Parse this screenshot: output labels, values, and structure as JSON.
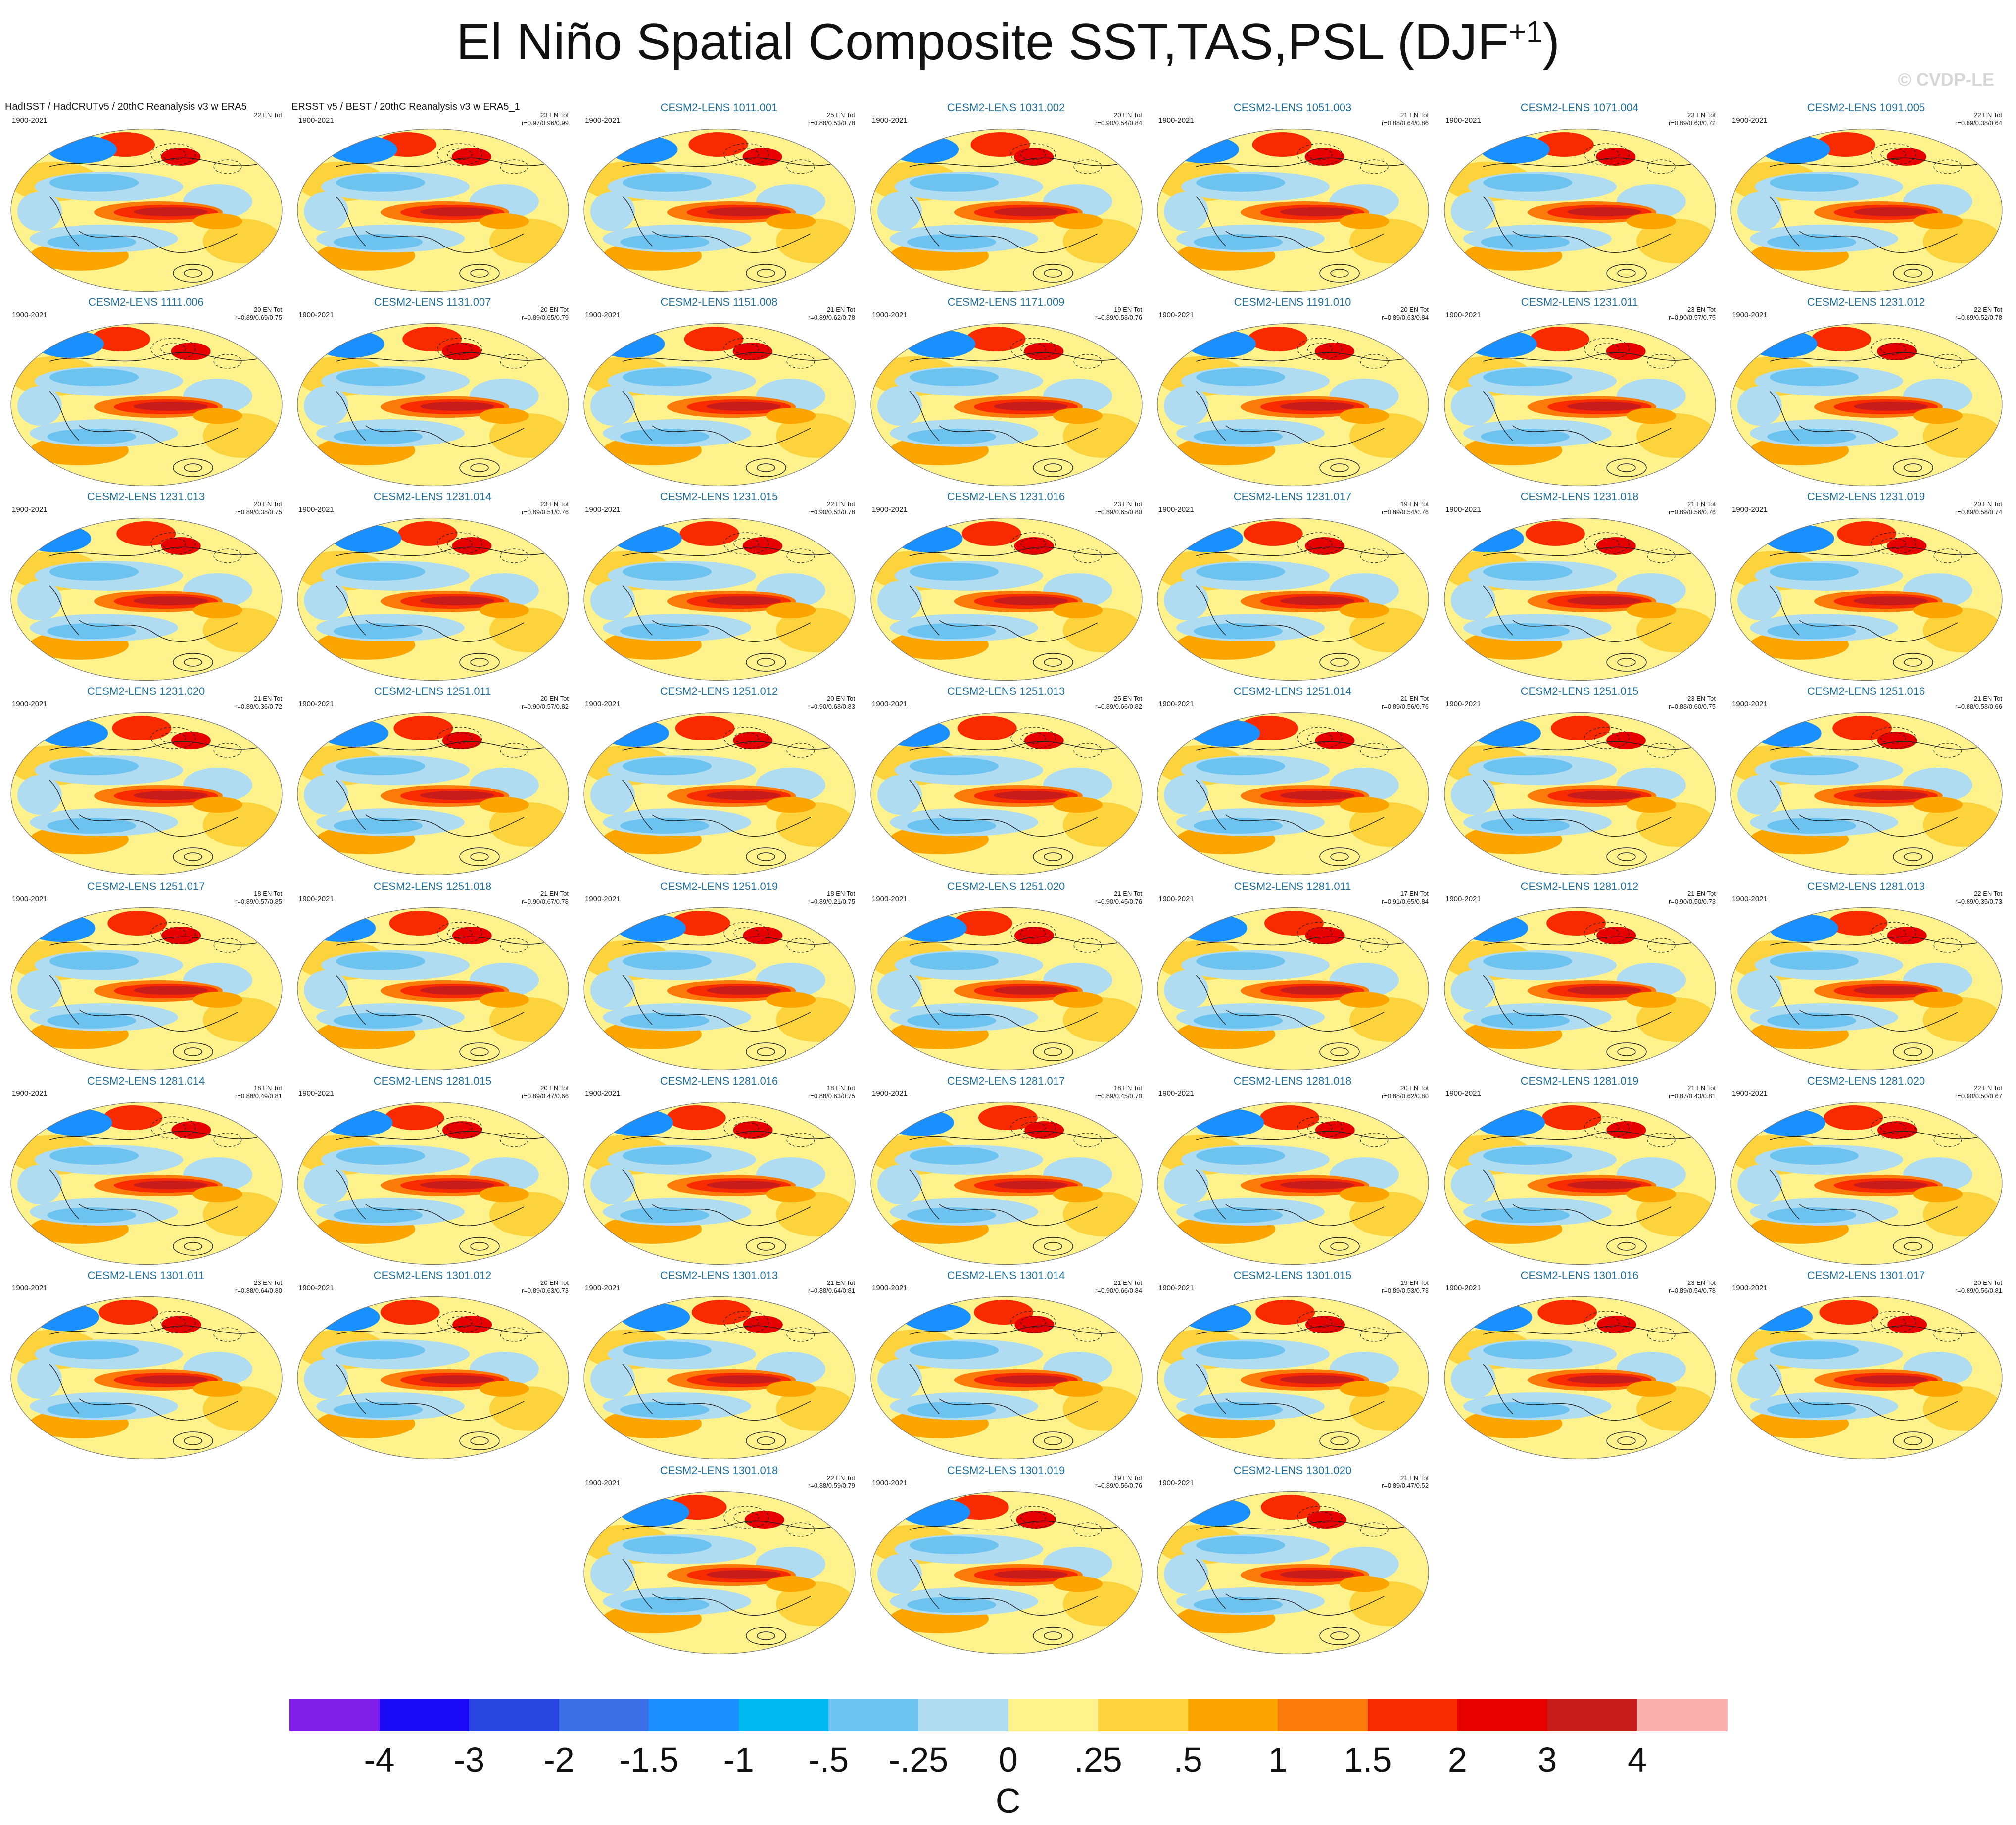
{
  "title": "El Niño Spatial Composite SST,TAS,PSL (DJF",
  "title_superscript": "+1",
  "title_close": ")",
  "watermark": "© CVDP-LE",
  "colors": {
    "member_title": "#1f6f9a",
    "contour": "#222222",
    "land_outline": "#666666"
  },
  "chart_data": {
    "type": "heatmap",
    "description_variables": [
      "SST",
      "TAS",
      "PSL"
    ],
    "season": "DJF+1",
    "units": "C",
    "colorbar": {
      "labels": [
        "-4",
        "-3",
        "-2",
        "-1.5",
        "-1",
        "-.5",
        "-.25",
        "0",
        ".25",
        ".5",
        "1",
        "1.5",
        "2",
        "3",
        "4"
      ],
      "colors": [
        "#7f1fe8",
        "#1a0af5",
        "#2947e0",
        "#3a6fe6",
        "#1a8fff",
        "#00b9f2",
        "#6dc3f0",
        "#b0dcf2",
        "#fdf28c",
        "#fcd23d",
        "#fca500",
        "#fb7b0a",
        "#f82a00",
        "#e60000",
        "#c81c1c",
        "#fbb0b0"
      ]
    },
    "panels": [
      {
        "title": "HadISST / HadCRUTv5 / 20thC Reanalysis v3 w ERA5",
        "years": "1900-2021",
        "events": "22 EN Tot",
        "stats": "",
        "obs": true
      },
      {
        "title": "ERSST v5 / BEST / 20thC Reanalysis v3 w ERA5_1",
        "years": "1900-2021",
        "events": "23 EN Tot",
        "stats": "r=0.97/0.96/0.99",
        "obs": true
      },
      {
        "title": "CESM2-LENS 1011.001",
        "years": "1900-2021",
        "events": "25 EN Tot",
        "stats": "r=0.88/0.53/0.78"
      },
      {
        "title": "CESM2-LENS 1031.002",
        "years": "1900-2021",
        "events": "20 EN Tot",
        "stats": "r=0.90/0.54/0.84"
      },
      {
        "title": "CESM2-LENS 1051.003",
        "years": "1900-2021",
        "events": "21 EN Tot",
        "stats": "r=0.88/0.64/0.86"
      },
      {
        "title": "CESM2-LENS 1071.004",
        "years": "1900-2021",
        "events": "23 EN Tot",
        "stats": "r=0.89/0.63/0.72"
      },
      {
        "title": "CESM2-LENS 1091.005",
        "years": "1900-2021",
        "events": "22 EN Tot",
        "stats": "r=0.89/0.38/0.64"
      },
      {
        "title": "CESM2-LENS 1111.006",
        "years": "1900-2021",
        "events": "20 EN Tot",
        "stats": "r=0.89/0.69/0.75"
      },
      {
        "title": "CESM2-LENS 1131.007",
        "years": "1900-2021",
        "events": "20 EN Tot",
        "stats": "r=0.89/0.65/0.79"
      },
      {
        "title": "CESM2-LENS 1151.008",
        "years": "1900-2021",
        "events": "21 EN Tot",
        "stats": "r=0.89/0.62/0.78"
      },
      {
        "title": "CESM2-LENS 1171.009",
        "years": "1900-2021",
        "events": "19 EN Tot",
        "stats": "r=0.89/0.58/0.76"
      },
      {
        "title": "CESM2-LENS 1191.010",
        "years": "1900-2021",
        "events": "20 EN Tot",
        "stats": "r=0.89/0.63/0.84"
      },
      {
        "title": "CESM2-LENS 1231.011",
        "years": "1900-2021",
        "events": "23 EN Tot",
        "stats": "r=0.90/0.57/0.75"
      },
      {
        "title": "CESM2-LENS 1231.012",
        "years": "1900-2021",
        "events": "22 EN Tot",
        "stats": "r=0.89/0.52/0.78"
      },
      {
        "title": "CESM2-LENS 1231.013",
        "years": "1900-2021",
        "events": "20 EN Tot",
        "stats": "r=0.89/0.38/0.75"
      },
      {
        "title": "CESM2-LENS 1231.014",
        "years": "1900-2021",
        "events": "23 EN Tot",
        "stats": "r=0.89/0.51/0.76"
      },
      {
        "title": "CESM2-LENS 1231.015",
        "years": "1900-2021",
        "events": "22 EN Tot",
        "stats": "r=0.90/0.53/0.78"
      },
      {
        "title": "CESM2-LENS 1231.016",
        "years": "1900-2021",
        "events": "23 EN Tot",
        "stats": "r=0.89/0.65/0.80"
      },
      {
        "title": "CESM2-LENS 1231.017",
        "years": "1900-2021",
        "events": "19 EN Tot",
        "stats": "r=0.89/0.54/0.76"
      },
      {
        "title": "CESM2-LENS 1231.018",
        "years": "1900-2021",
        "events": "21 EN Tot",
        "stats": "r=0.89/0.56/0.76"
      },
      {
        "title": "CESM2-LENS 1231.019",
        "years": "1900-2021",
        "events": "20 EN Tot",
        "stats": "r=0.89/0.58/0.74"
      },
      {
        "title": "CESM2-LENS 1231.020",
        "years": "1900-2021",
        "events": "21 EN Tot",
        "stats": "r=0.89/0.36/0.72"
      },
      {
        "title": "CESM2-LENS 1251.011",
        "years": "1900-2021",
        "events": "20 EN Tot",
        "stats": "r=0.90/0.57/0.82"
      },
      {
        "title": "CESM2-LENS 1251.012",
        "years": "1900-2021",
        "events": "20 EN Tot",
        "stats": "r=0.90/0.68/0.83"
      },
      {
        "title": "CESM2-LENS 1251.013",
        "years": "1900-2021",
        "events": "25 EN Tot",
        "stats": "r=0.89/0.66/0.82"
      },
      {
        "title": "CESM2-LENS 1251.014",
        "years": "1900-2021",
        "events": "21 EN Tot",
        "stats": "r=0.89/0.56/0.76"
      },
      {
        "title": "CESM2-LENS 1251.015",
        "years": "1900-2021",
        "events": "23 EN Tot",
        "stats": "r=0.88/0.60/0.75"
      },
      {
        "title": "CESM2-LENS 1251.016",
        "years": "1900-2021",
        "events": "21 EN Tot",
        "stats": "r=0.88/0.58/0.66"
      },
      {
        "title": "CESM2-LENS 1251.017",
        "years": "1900-2021",
        "events": "18 EN Tot",
        "stats": "r=0.89/0.57/0.85"
      },
      {
        "title": "CESM2-LENS 1251.018",
        "years": "1900-2021",
        "events": "21 EN Tot",
        "stats": "r=0.90/0.67/0.78"
      },
      {
        "title": "CESM2-LENS 1251.019",
        "years": "1900-2021",
        "events": "18 EN Tot",
        "stats": "r=0.89/0.21/0.75"
      },
      {
        "title": "CESM2-LENS 1251.020",
        "years": "1900-2021",
        "events": "21 EN Tot",
        "stats": "r=0.90/0.45/0.76"
      },
      {
        "title": "CESM2-LENS 1281.011",
        "years": "1900-2021",
        "events": "17 EN Tot",
        "stats": "r=0.91/0.65/0.84"
      },
      {
        "title": "CESM2-LENS 1281.012",
        "years": "1900-2021",
        "events": "21 EN Tot",
        "stats": "r=0.90/0.50/0.73"
      },
      {
        "title": "CESM2-LENS 1281.013",
        "years": "1900-2021",
        "events": "22 EN Tot",
        "stats": "r=0.89/0.35/0.73"
      },
      {
        "title": "CESM2-LENS 1281.014",
        "years": "1900-2021",
        "events": "18 EN Tot",
        "stats": "r=0.88/0.49/0.81"
      },
      {
        "title": "CESM2-LENS 1281.015",
        "years": "1900-2021",
        "events": "20 EN Tot",
        "stats": "r=0.89/0.47/0.66"
      },
      {
        "title": "CESM2-LENS 1281.016",
        "years": "1900-2021",
        "events": "18 EN Tot",
        "stats": "r=0.88/0.63/0.75"
      },
      {
        "title": "CESM2-LENS 1281.017",
        "years": "1900-2021",
        "events": "18 EN Tot",
        "stats": "r=0.89/0.45/0.70"
      },
      {
        "title": "CESM2-LENS 1281.018",
        "years": "1900-2021",
        "events": "20 EN Tot",
        "stats": "r=0.88/0.62/0.80"
      },
      {
        "title": "CESM2-LENS 1281.019",
        "years": "1900-2021",
        "events": "21 EN Tot",
        "stats": "r=0.87/0.43/0.81"
      },
      {
        "title": "CESM2-LENS 1281.020",
        "years": "1900-2021",
        "events": "22 EN Tot",
        "stats": "r=0.90/0.50/0.67"
      },
      {
        "title": "CESM2-LENS 1301.011",
        "years": "1900-2021",
        "events": "23 EN Tot",
        "stats": "r=0.88/0.64/0.80"
      },
      {
        "title": "CESM2-LENS 1301.012",
        "years": "1900-2021",
        "events": "20 EN Tot",
        "stats": "r=0.89/0.63/0.73"
      },
      {
        "title": "CESM2-LENS 1301.013",
        "years": "1900-2021",
        "events": "21 EN Tot",
        "stats": "r=0.88/0.64/0.81"
      },
      {
        "title": "CESM2-LENS 1301.014",
        "years": "1900-2021",
        "events": "21 EN Tot",
        "stats": "r=0.90/0.66/0.84"
      },
      {
        "title": "CESM2-LENS 1301.015",
        "years": "1900-2021",
        "events": "19 EN Tot",
        "stats": "r=0.89/0.53/0.73"
      },
      {
        "title": "CESM2-LENS 1301.016",
        "years": "1900-2021",
        "events": "23 EN Tot",
        "stats": "r=0.89/0.54/0.78"
      },
      {
        "title": "CESM2-LENS 1301.017",
        "years": "1900-2021",
        "events": "20 EN Tot",
        "stats": "r=0.89/0.56/0.81"
      },
      {
        "title": "CESM2-LENS 1301.018",
        "years": "1900-2021",
        "events": "22 EN Tot",
        "stats": "r=0.88/0.59/0.79"
      },
      {
        "title": "CESM2-LENS 1301.019",
        "years": "1900-2021",
        "events": "19 EN Tot",
        "stats": "r=0.89/0.56/0.76"
      },
      {
        "title": "CESM2-LENS 1301.020",
        "years": "1900-2021",
        "events": "21 EN Tot",
        "stats": "r=0.89/0.47/0.52"
      }
    ]
  }
}
